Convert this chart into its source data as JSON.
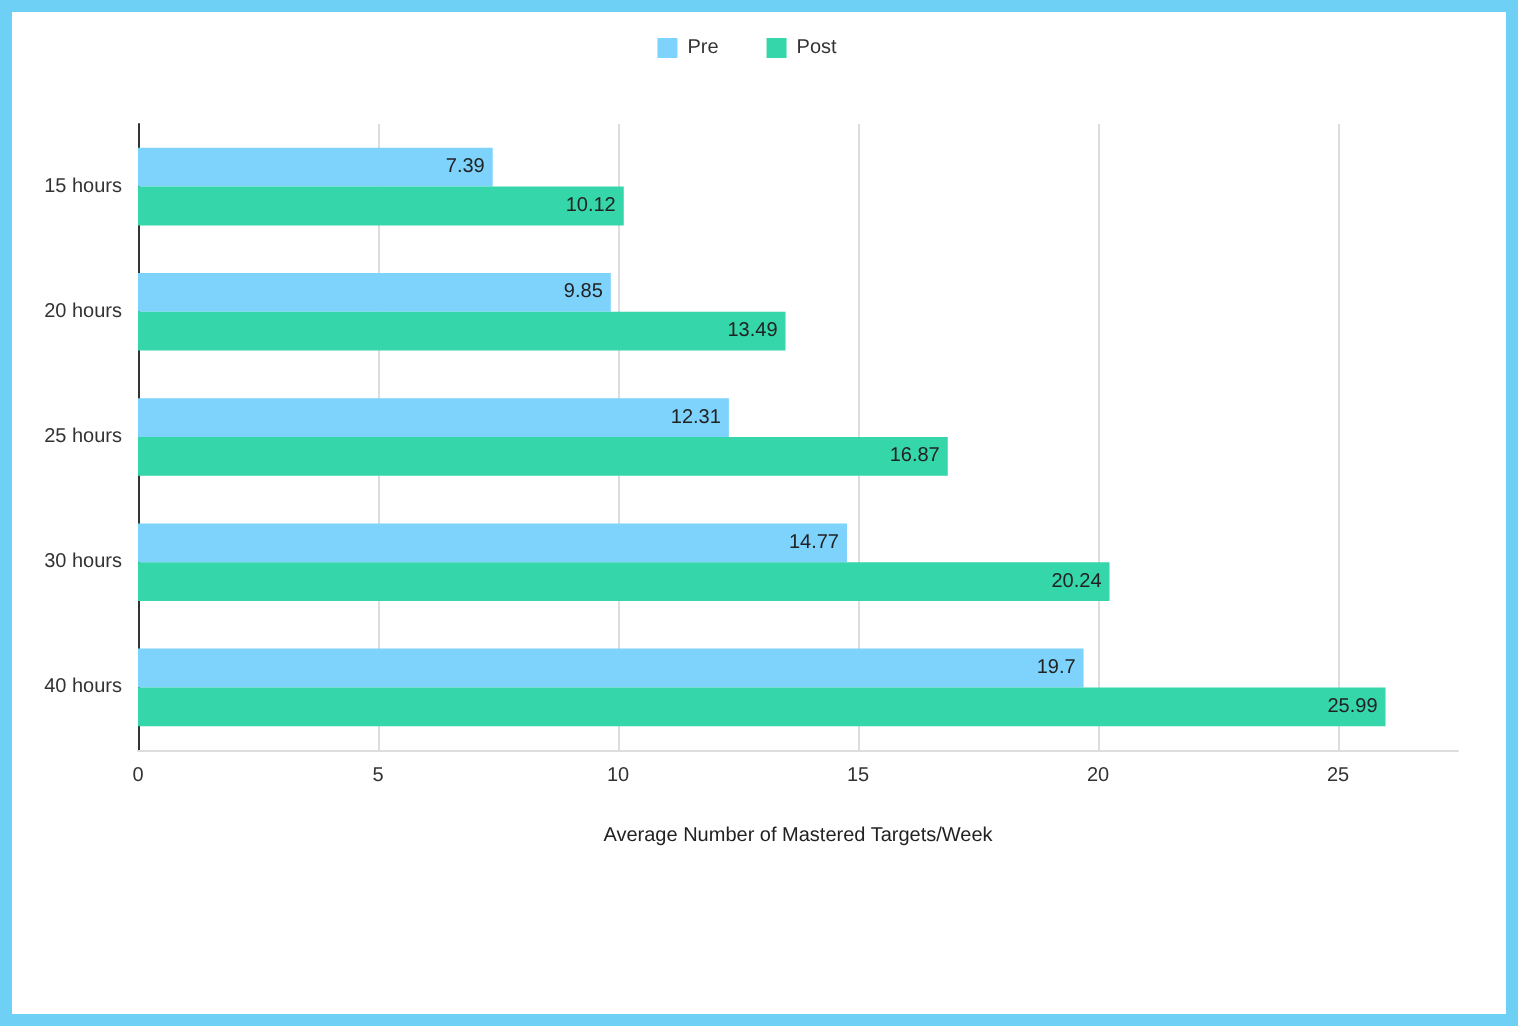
{
  "chart_data": {
    "type": "bar",
    "orientation": "horizontal",
    "xlabel": "Average Number of Mastered Targets/Week",
    "categories": [
      "15 hours",
      "20 hours",
      "25 hours",
      "30 hours",
      "40 hours"
    ],
    "series": [
      {
        "name": "Pre",
        "color": "#7dd3fc",
        "values": [
          7.39,
          9.85,
          12.31,
          14.77,
          19.7
        ]
      },
      {
        "name": "Post",
        "color": "#36d6ab",
        "values": [
          10.12,
          13.49,
          16.87,
          20.24,
          25.99
        ]
      }
    ],
    "xlim": [
      0,
      27.5
    ],
    "xticks": [
      0,
      5,
      10,
      15,
      20,
      25
    ],
    "grid": "x",
    "legend": "top",
    "data_labels": true
  }
}
